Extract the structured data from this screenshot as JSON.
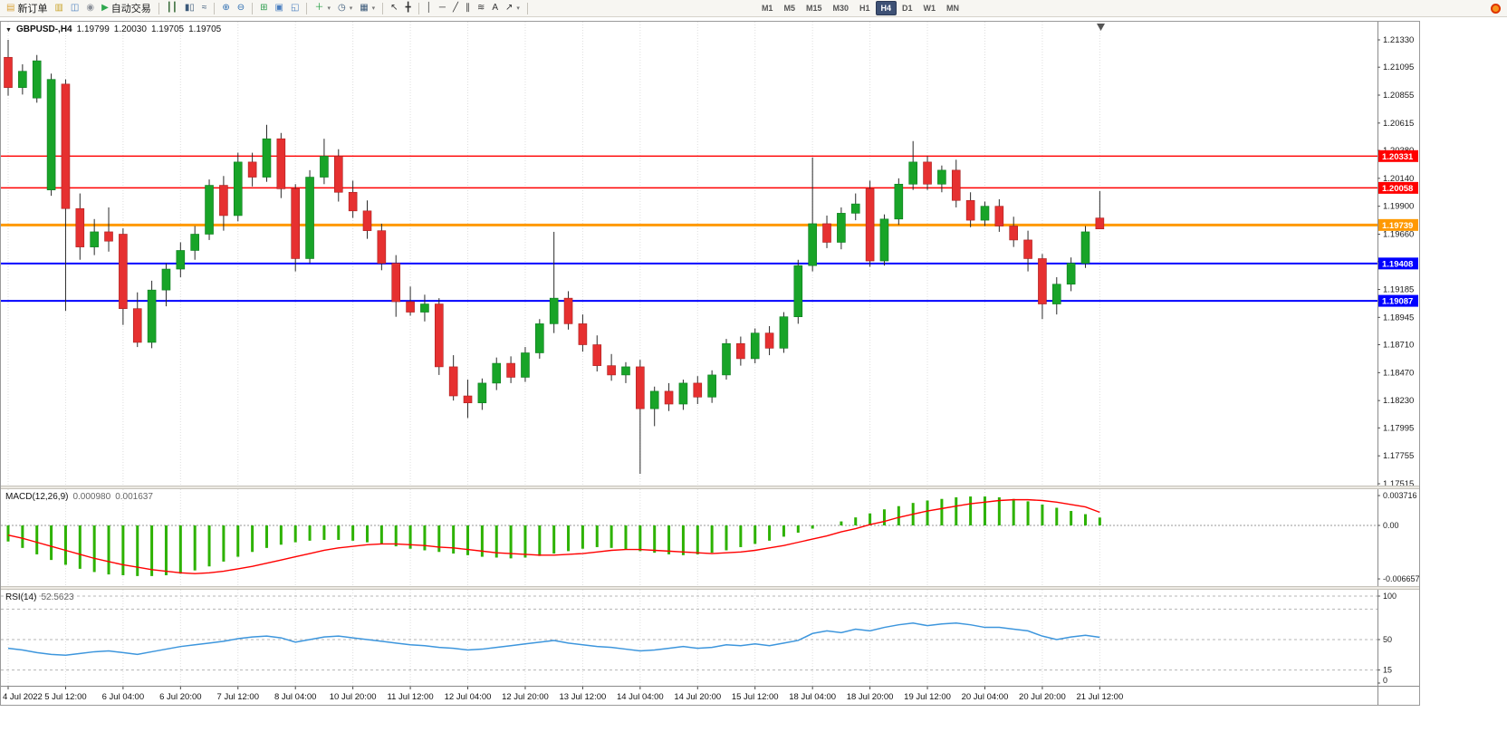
{
  "toolbar": {
    "groups": [
      {
        "name": "trade-group",
        "items": [
          {
            "name": "new-order-button",
            "glyph": "▤",
            "color": "#d9a43c",
            "label": "新订单"
          },
          {
            "name": "market-watch-icon",
            "glyph": "▥",
            "color": "#c9a227"
          },
          {
            "name": "navigator-icon",
            "glyph": "◫",
            "color": "#4a7fc0"
          },
          {
            "name": "terminal-icon",
            "glyph": "◉",
            "color": "#8a8f98"
          },
          {
            "name": "autotrading-button",
            "glyph": "▶",
            "color": "#2fa84f",
            "label": "自动交易"
          }
        ]
      },
      {
        "name": "chart-type-group",
        "items": [
          {
            "name": "bar-chart-icon",
            "glyph": "┃┃",
            "color": "#3c6e3c"
          },
          {
            "name": "candlestick-chart-icon",
            "glyph": "▮▯",
            "color": "#3c5a7a"
          },
          {
            "name": "line-chart-icon",
            "glyph": "≈",
            "color": "#3c5a7a"
          }
        ]
      },
      {
        "name": "zoom-group",
        "items": [
          {
            "name": "zoom-in-icon",
            "glyph": "⊕",
            "color": "#2b6cb0"
          },
          {
            "name": "zoom-out-icon",
            "glyph": "⊖",
            "color": "#2b6cb0"
          }
        ]
      },
      {
        "name": "window-group",
        "items": [
          {
            "name": "tile-windows-icon",
            "glyph": "⊞",
            "color": "#2f9e4f"
          },
          {
            "name": "cascade-windows-icon",
            "glyph": "▣",
            "color": "#4a7fc0"
          },
          {
            "name": "arrange-windows-icon",
            "glyph": "◱",
            "color": "#4a7fc0"
          }
        ]
      },
      {
        "name": "chart-tools-group",
        "items": [
          {
            "name": "indicators-button",
            "glyph": "＋",
            "color": "#1f9d3f",
            "dropdown": true
          },
          {
            "name": "periods-button",
            "glyph": "◷",
            "color": "#3c5a7a",
            "dropdown": true
          },
          {
            "name": "templates-button",
            "glyph": "▦",
            "color": "#3c5a7a",
            "dropdown": true
          }
        ]
      },
      {
        "name": "cursor-group",
        "items": [
          {
            "name": "cursor-icon",
            "glyph": "↖",
            "color": "#333"
          },
          {
            "name": "crosshair-icon",
            "glyph": "╋",
            "color": "#333"
          }
        ]
      },
      {
        "name": "draw-group",
        "items": [
          {
            "name": "vertical-line-icon",
            "glyph": "│",
            "color": "#333"
          },
          {
            "name": "horizontal-line-icon",
            "glyph": "─",
            "color": "#333"
          },
          {
            "name": "trendline-icon",
            "glyph": "╱",
            "color": "#333"
          },
          {
            "name": "channel-icon",
            "glyph": "∥",
            "color": "#333"
          },
          {
            "name": "fibonacci-icon",
            "glyph": "≋",
            "color": "#333"
          },
          {
            "name": "text-icon",
            "glyph": "A",
            "color": "#333"
          },
          {
            "name": "arrows-icon",
            "glyph": "↗",
            "color": "#333",
            "dropdown": true
          }
        ]
      },
      {
        "name": "timeframes-group",
        "items": [
          {
            "name": "timeframe-m1-button",
            "label": "M1",
            "tf": true
          },
          {
            "name": "timeframe-m5-button",
            "label": "M5",
            "tf": true
          },
          {
            "name": "timeframe-m15-button",
            "label": "M15",
            "tf": true
          },
          {
            "name": "timeframe-m30-button",
            "label": "M30",
            "tf": true
          },
          {
            "name": "timeframe-h1-button",
            "label": "H1",
            "tf": true
          },
          {
            "name": "timeframe-h4-button",
            "label": "H4",
            "tf": true,
            "active": true
          },
          {
            "name": "timeframe-d1-button",
            "label": "D1",
            "tf": true
          },
          {
            "name": "timeframe-w1-button",
            "label": "W1",
            "tf": true
          },
          {
            "name": "timeframe-mn-button",
            "label": "MN",
            "tf": true
          }
        ]
      }
    ]
  },
  "chart_header": {
    "collapse_icon": "▼",
    "symbol_period": "GBPUSD-,H4",
    "open": "1.19799",
    "high": "1.20030",
    "low": "1.19705",
    "close": "1.19705"
  },
  "chart_data": {
    "type": "candlestick",
    "symbol": "GBPUSD-",
    "period": "H4",
    "label_every": 4,
    "price_axis": [
      "1.21330",
      "1.21095",
      "1.20855",
      "1.20615",
      "1.20380",
      "1.20140",
      "1.19900",
      "1.19660",
      "1.19425",
      "1.19185",
      "1.18945",
      "1.18710",
      "1.18470",
      "1.18230",
      "1.17995",
      "1.17755",
      "1.17515"
    ],
    "hlines": [
      {
        "price": 1.20331,
        "label": "1.20331",
        "color": "#ff0000",
        "width": 1.4
      },
      {
        "price": 1.20058,
        "label": "1.20058",
        "color": "#ff0000",
        "width": 1.4
      },
      {
        "price": 1.19739,
        "label": "1.19739",
        "color": "#ff9900",
        "width": 3
      },
      {
        "price": 1.19408,
        "label": "1.19408",
        "color": "#0000ff",
        "width": 2
      },
      {
        "price": 1.19087,
        "label": "1.19087",
        "color": "#0000ff",
        "width": 2
      }
    ],
    "time_labels": [
      "4 Jul 2022",
      "5 Jul 12:00",
      "6 Jul 04:00",
      "6 Jul 20:00",
      "7 Jul 12:00",
      "8 Jul 04:00",
      "10 Jul 20:00",
      "11 Jul 12:00",
      "12 Jul 04:00",
      "12 Jul 20:00",
      "13 Jul 12:00",
      "14 Jul 04:00",
      "14 Jul 20:00",
      "15 Jul 12:00",
      "18 Jul 04:00",
      "18 Jul 20:00",
      "19 Jul 12:00",
      "20 Jul 04:00",
      "20 Jul 20:00",
      "21 Jul 12:00"
    ],
    "candles": [
      [
        1.2118,
        1.2133,
        1.2085,
        1.2092
      ],
      [
        1.2092,
        1.2112,
        1.2086,
        1.2106
      ],
      [
        1.2083,
        1.212,
        1.2079,
        1.2115
      ],
      [
        1.2004,
        1.2104,
        1.1999,
        1.2099
      ],
      [
        1.2095,
        1.2099,
        1.19,
        1.1988
      ],
      [
        1.1988,
        1.2001,
        1.1944,
        1.1955
      ],
      [
        1.1955,
        1.1979,
        1.1948,
        1.1968
      ],
      [
        1.1968,
        1.1989,
        1.1951,
        1.196
      ],
      [
        1.1966,
        1.1971,
        1.1888,
        1.1902
      ],
      [
        1.1902,
        1.1916,
        1.1869,
        1.1873
      ],
      [
        1.1873,
        1.1926,
        1.1868,
        1.1918
      ],
      [
        1.1918,
        1.1941,
        1.1904,
        1.1936
      ],
      [
        1.1936,
        1.1959,
        1.1929,
        1.1952
      ],
      [
        1.1952,
        1.1973,
        1.1944,
        1.1966
      ],
      [
        1.1966,
        1.2013,
        1.1961,
        1.2008
      ],
      [
        1.2008,
        1.2016,
        1.1969,
        1.1982
      ],
      [
        1.1982,
        1.2036,
        1.1977,
        1.2028
      ],
      [
        1.2028,
        1.2036,
        1.2007,
        1.2015
      ],
      [
        1.2015,
        1.206,
        1.2011,
        1.2048
      ],
      [
        1.2048,
        1.2053,
        1.1997,
        1.2005
      ],
      [
        1.2005,
        1.2009,
        1.1934,
        1.1945
      ],
      [
        1.1945,
        1.2021,
        1.1941,
        1.2015
      ],
      [
        1.2015,
        1.2048,
        1.2009,
        1.2033
      ],
      [
        1.2033,
        1.2039,
        1.1994,
        1.2002
      ],
      [
        1.2002,
        1.2012,
        1.198,
        1.1986
      ],
      [
        1.1986,
        1.1995,
        1.1962,
        1.1969
      ],
      [
        1.1969,
        1.1975,
        1.1935,
        1.1941
      ],
      [
        1.1941,
        1.1948,
        1.1895,
        1.1908
      ],
      [
        1.1908,
        1.1921,
        1.1896,
        1.1899
      ],
      [
        1.1899,
        1.1914,
        1.1891,
        1.1906
      ],
      [
        1.1906,
        1.1911,
        1.1845,
        1.1852
      ],
      [
        1.1852,
        1.1862,
        1.1823,
        1.1827
      ],
      [
        1.1827,
        1.1841,
        1.1808,
        1.1821
      ],
      [
        1.1821,
        1.1842,
        1.1815,
        1.1838
      ],
      [
        1.1838,
        1.186,
        1.1832,
        1.1855
      ],
      [
        1.1855,
        1.1861,
        1.1838,
        1.1843
      ],
      [
        1.1843,
        1.1869,
        1.1839,
        1.1864
      ],
      [
        1.1864,
        1.1893,
        1.1859,
        1.1889
      ],
      [
        1.1889,
        1.1968,
        1.1881,
        1.1911
      ],
      [
        1.1911,
        1.1917,
        1.1884,
        1.1889
      ],
      [
        1.1889,
        1.1897,
        1.1865,
        1.1871
      ],
      [
        1.1871,
        1.1879,
        1.1848,
        1.1853
      ],
      [
        1.1853,
        1.1863,
        1.184,
        1.1845
      ],
      [
        1.1845,
        1.1856,
        1.1838,
        1.1852
      ],
      [
        1.1852,
        1.1858,
        1.176,
        1.1816
      ],
      [
        1.1816,
        1.1835,
        1.1801,
        1.1831
      ],
      [
        1.1831,
        1.1838,
        1.1814,
        1.182
      ],
      [
        1.182,
        1.1841,
        1.1815,
        1.1838
      ],
      [
        1.1838,
        1.1844,
        1.182,
        1.1826
      ],
      [
        1.1826,
        1.1849,
        1.1821,
        1.1845
      ],
      [
        1.1845,
        1.1876,
        1.1841,
        1.1872
      ],
      [
        1.1872,
        1.1878,
        1.1853,
        1.1859
      ],
      [
        1.1859,
        1.1885,
        1.1855,
        1.1881
      ],
      [
        1.1881,
        1.1887,
        1.1862,
        1.1868
      ],
      [
        1.1868,
        1.1899,
        1.1864,
        1.1895
      ],
      [
        1.1895,
        1.1944,
        1.1889,
        1.1939
      ],
      [
        1.1939,
        1.2032,
        1.1934,
        1.1975
      ],
      [
        1.1975,
        1.1982,
        1.1954,
        1.1959
      ],
      [
        1.1959,
        1.1989,
        1.1953,
        1.1984
      ],
      [
        1.1984,
        1.2001,
        1.1978,
        1.1992
      ],
      [
        1.2005,
        1.2012,
        1.1938,
        1.1943
      ],
      [
        1.1943,
        1.1983,
        1.1939,
        1.1979
      ],
      [
        1.1979,
        1.2014,
        1.1974,
        1.2009
      ],
      [
        1.2009,
        1.2046,
        1.2004,
        1.2028
      ],
      [
        1.2028,
        1.2033,
        1.2004,
        1.2009
      ],
      [
        1.2009,
        1.2025,
        1.2002,
        1.2021
      ],
      [
        1.2021,
        1.203,
        1.1989,
        1.1995
      ],
      [
        1.1995,
        1.2002,
        1.1972,
        1.1978
      ],
      [
        1.1978,
        1.1994,
        1.1973,
        1.199
      ],
      [
        1.199,
        1.1996,
        1.1968,
        1.1973
      ],
      [
        1.1973,
        1.1981,
        1.1955,
        1.1961
      ],
      [
        1.1961,
        1.1969,
        1.1934,
        1.1945
      ],
      [
        1.1945,
        1.1949,
        1.1893,
        1.1906
      ],
      [
        1.1906,
        1.1929,
        1.1897,
        1.1923
      ],
      [
        1.1923,
        1.1946,
        1.1917,
        1.1941
      ],
      [
        1.1941,
        1.1973,
        1.1937,
        1.1968
      ],
      [
        1.19799,
        1.2003,
        1.19705,
        1.19705
      ]
    ],
    "macd": {
      "title": "MACD(12,26,9)",
      "value_main": "0.000980",
      "value_signal": "0.001637",
      "axis": [
        "0.003716",
        "0.00",
        "-0.006657"
      ],
      "histogram": [
        -0.002,
        -0.0028,
        -0.0036,
        -0.0043,
        -0.0049,
        -0.0054,
        -0.0058,
        -0.0061,
        -0.0062,
        -0.0063,
        -0.0063,
        -0.0062,
        -0.006,
        -0.0056,
        -0.0051,
        -0.0045,
        -0.0039,
        -0.0033,
        -0.0028,
        -0.0024,
        -0.0021,
        -0.0019,
        -0.0018,
        -0.0018,
        -0.0019,
        -0.0021,
        -0.0023,
        -0.0026,
        -0.0029,
        -0.0031,
        -0.0033,
        -0.0035,
        -0.0037,
        -0.0039,
        -0.004,
        -0.0041,
        -0.004,
        -0.0038,
        -0.0035,
        -0.0032,
        -0.0029,
        -0.0027,
        -0.0028,
        -0.003,
        -0.0032,
        -0.0034,
        -0.0036,
        -0.0037,
        -0.0036,
        -0.0034,
        -0.0031,
        -0.0027,
        -0.0023,
        -0.0019,
        -0.0014,
        -0.0009,
        -0.0004,
        0.0,
        0.0005,
        0.001,
        0.0015,
        0.002,
        0.0024,
        0.0028,
        0.0031,
        0.0033,
        0.0035,
        0.0036,
        0.0036,
        0.0035,
        0.0033,
        0.003,
        0.0026,
        0.0022,
        0.0018,
        0.0014,
        0.00098
      ],
      "signal": [
        -0.0012,
        -0.0016,
        -0.0021,
        -0.0026,
        -0.0031,
        -0.0036,
        -0.0041,
        -0.0045,
        -0.0049,
        -0.0052,
        -0.0055,
        -0.0057,
        -0.0059,
        -0.006,
        -0.0059,
        -0.0057,
        -0.0054,
        -0.0051,
        -0.0047,
        -0.0043,
        -0.0039,
        -0.0035,
        -0.0031,
        -0.0028,
        -0.0026,
        -0.0024,
        -0.0023,
        -0.0023,
        -0.0024,
        -0.0025,
        -0.0027,
        -0.0028,
        -0.003,
        -0.0032,
        -0.0034,
        -0.0035,
        -0.0036,
        -0.0037,
        -0.0037,
        -0.0036,
        -0.0035,
        -0.0033,
        -0.0031,
        -0.003,
        -0.003,
        -0.0031,
        -0.0032,
        -0.0033,
        -0.0034,
        -0.0035,
        -0.0034,
        -0.0033,
        -0.0031,
        -0.0028,
        -0.0025,
        -0.0021,
        -0.0017,
        -0.0013,
        -0.0008,
        -0.0004,
        0.0001,
        0.0005,
        0.001,
        0.0014,
        0.0018,
        0.0021,
        0.0024,
        0.0027,
        0.0029,
        0.0031,
        0.0032,
        0.0032,
        0.0031,
        0.0029,
        0.0026,
        0.0023,
        0.001637
      ]
    },
    "rsi": {
      "title": "RSI(14)",
      "value": "52.5623",
      "axis": [
        "100",
        "50",
        "15",
        "0"
      ],
      "levels": [
        100,
        85,
        50,
        15
      ],
      "values": [
        40,
        38,
        35,
        33,
        32,
        34,
        36,
        37,
        35,
        33,
        36,
        39,
        42,
        44,
        46,
        48,
        51,
        53,
        54,
        52,
        47,
        50,
        53,
        54,
        52,
        50,
        48,
        46,
        44,
        43,
        41,
        40,
        38,
        39,
        41,
        43,
        45,
        47,
        49,
        46,
        44,
        42,
        41,
        39,
        37,
        38,
        40,
        42,
        40,
        41,
        44,
        43,
        45,
        43,
        46,
        49,
        57,
        60,
        58,
        62,
        60,
        64,
        67,
        69,
        66,
        68,
        69,
        67,
        64,
        64,
        62,
        60,
        54,
        50,
        53,
        55,
        52.5623
      ]
    },
    "colors": {
      "up": "#18a428",
      "down": "#e63030",
      "up_edge": "#0c7a1e",
      "down_edge": "#a81f1f",
      "wick": "#2a2a2a",
      "macd_hist": "#2db200",
      "macd_signal": "#ff0000",
      "rsi_line": "#3d96dd",
      "grid": "#dedede",
      "axis_text": "#1a1a1a"
    }
  }
}
